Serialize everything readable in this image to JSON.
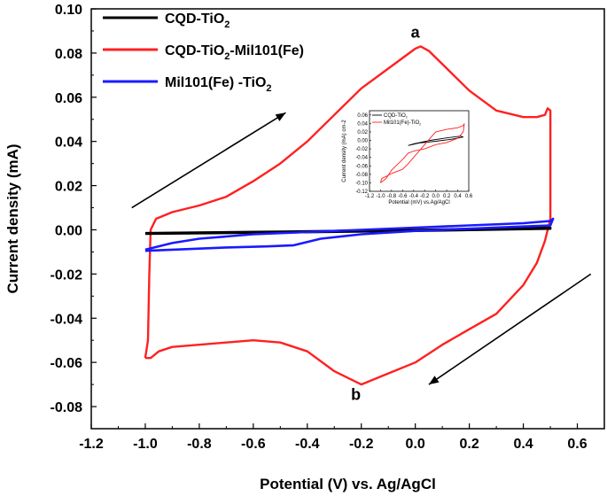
{
  "chart_data": {
    "type": "line",
    "title": "",
    "xlabel": "Potential (V) vs. Ag/AgCl",
    "ylabel": "Current density (mA)",
    "xlim": [
      -1.2,
      0.7
    ],
    "ylim": [
      -0.09,
      0.1
    ],
    "x_ticks": [
      "-1.2",
      "-1.0",
      "-0.8",
      "-0.6",
      "-0.4",
      "-0.2",
      "0.0",
      "0.2",
      "0.4",
      "0.6"
    ],
    "y_ticks": [
      "0.10",
      "0.08",
      "0.06",
      "0.04",
      "0.02",
      "0.00",
      "-0.02",
      "-0.04",
      "-0.06",
      "-0.08"
    ],
    "series": [
      {
        "name": "CQD-TiO2",
        "legend_main": "CQD-TiO",
        "legend_sub": "2",
        "legend_tail": "",
        "color": "#000000",
        "points": [
          [
            -1.0,
            -0.0015
          ],
          [
            -0.5,
            -0.0008
          ],
          [
            0.0,
            0.0
          ],
          [
            0.5,
            0.001
          ],
          [
            0.5,
            0.0005
          ],
          [
            0.0,
            -0.0005
          ],
          [
            -0.5,
            -0.0012
          ],
          [
            -1.0,
            -0.0018
          ]
        ]
      },
      {
        "name": "CQD-TiO2-Mil101(Fe)",
        "legend_main": "CQD-TiO",
        "legend_sub": "2",
        "legend_tail": "-Mil101(Fe)",
        "color": "#ff2020",
        "points": [
          [
            -1.0,
            -0.058
          ],
          [
            -0.99,
            -0.05
          ],
          [
            -0.985,
            -0.02
          ],
          [
            -0.98,
            0.0
          ],
          [
            -0.96,
            0.005
          ],
          [
            -0.9,
            0.008
          ],
          [
            -0.8,
            0.011
          ],
          [
            -0.7,
            0.015
          ],
          [
            -0.6,
            0.022
          ],
          [
            -0.5,
            0.03
          ],
          [
            -0.4,
            0.04
          ],
          [
            -0.3,
            0.052
          ],
          [
            -0.2,
            0.064
          ],
          [
            -0.1,
            0.073
          ],
          [
            0.0,
            0.082
          ],
          [
            0.02,
            0.083
          ],
          [
            0.05,
            0.081
          ],
          [
            0.1,
            0.075
          ],
          [
            0.2,
            0.063
          ],
          [
            0.3,
            0.054
          ],
          [
            0.4,
            0.051
          ],
          [
            0.45,
            0.051
          ],
          [
            0.48,
            0.052
          ],
          [
            0.49,
            0.055
          ],
          [
            0.5,
            0.054
          ],
          [
            0.5,
            0.005
          ],
          [
            0.48,
            -0.005
          ],
          [
            0.45,
            -0.015
          ],
          [
            0.4,
            -0.025
          ],
          [
            0.3,
            -0.038
          ],
          [
            0.2,
            -0.045
          ],
          [
            0.1,
            -0.052
          ],
          [
            0.0,
            -0.06
          ],
          [
            -0.1,
            -0.065
          ],
          [
            -0.2,
            -0.07
          ],
          [
            -0.3,
            -0.064
          ],
          [
            -0.4,
            -0.055
          ],
          [
            -0.5,
            -0.051
          ],
          [
            -0.6,
            -0.05
          ],
          [
            -0.7,
            -0.051
          ],
          [
            -0.8,
            -0.052
          ],
          [
            -0.9,
            -0.053
          ],
          [
            -0.95,
            -0.055
          ],
          [
            -0.98,
            -0.058
          ],
          [
            -1.0,
            -0.058
          ]
        ]
      },
      {
        "name": "Mil101(Fe) -TiO2",
        "legend_main": "Mil101(Fe) -TiO",
        "legend_sub": "2",
        "legend_tail": "",
        "color": "#1a1aff",
        "points": [
          [
            -1.0,
            -0.009
          ],
          [
            -0.9,
            -0.006
          ],
          [
            -0.8,
            -0.004
          ],
          [
            -0.7,
            -0.003
          ],
          [
            -0.6,
            -0.002
          ],
          [
            -0.5,
            -0.0015
          ],
          [
            -0.4,
            -0.001
          ],
          [
            -0.2,
            0.0
          ],
          [
            0.0,
            0.001
          ],
          [
            0.2,
            0.002
          ],
          [
            0.4,
            0.003
          ],
          [
            0.5,
            0.004
          ],
          [
            0.51,
            0.005
          ],
          [
            0.5,
            0.002
          ],
          [
            0.4,
            0.0015
          ],
          [
            0.2,
            0.0005
          ],
          [
            0.0,
            -0.0005
          ],
          [
            -0.2,
            -0.002
          ],
          [
            -0.35,
            -0.004
          ],
          [
            -0.45,
            -0.007
          ],
          [
            -0.55,
            -0.0075
          ],
          [
            -0.7,
            -0.008
          ],
          [
            -0.8,
            -0.0085
          ],
          [
            -0.9,
            -0.009
          ],
          [
            -1.0,
            -0.0095
          ]
        ]
      }
    ],
    "annotations": [
      {
        "text": "a",
        "x": 0.0,
        "y": 0.087
      },
      {
        "text": "b",
        "x": -0.22,
        "y": -0.077
      }
    ],
    "arrows": [
      {
        "from": [
          -1.05,
          0.01
        ],
        "to": [
          -0.48,
          0.053
        ]
      },
      {
        "from": [
          0.65,
          -0.02
        ],
        "to": [
          0.05,
          -0.07
        ]
      }
    ],
    "inset": {
      "xlabel": "Potential (mV) vs.Ag/AgCl",
      "ylabel": "Current density (mA) cm-2",
      "xlim": [
        -1.2,
        0.6
      ],
      "ylim": [
        -0.12,
        0.07
      ],
      "x_ticks": [
        "-1.2",
        "-1.0",
        "-0.8",
        "-0.6",
        "-0.4",
        "-0.2",
        "0.0",
        "0.2",
        "0.4",
        "0.6"
      ],
      "y_ticks": [
        "0.06",
        "0.04",
        "0.02",
        "0.00",
        "-0.02",
        "-0.04",
        "-0.06",
        "-0.08",
        "-0.10",
        "-0.12"
      ],
      "series": [
        {
          "name": "CQD-TiO2",
          "legend_main": "CQD-TiO",
          "legend_sub": "2",
          "color": "#000000",
          "points": [
            [
              -0.5,
              -0.012
            ],
            [
              -0.3,
              -0.006
            ],
            [
              0.0,
              -0.002
            ],
            [
              0.3,
              0.003
            ],
            [
              0.5,
              0.008
            ],
            [
              0.45,
              0.01
            ],
            [
              0.2,
              0.006
            ],
            [
              -0.1,
              0.0
            ],
            [
              -0.4,
              -0.008
            ],
            [
              -0.5,
              -0.012
            ]
          ]
        },
        {
          "name": "Mil101(Fe)-TiO2",
          "legend_main": "Mil101(Fe)-TiO",
          "legend_sub": "2",
          "color": "#ff2020",
          "points": [
            [
              -1.0,
              -0.1
            ],
            [
              -0.98,
              -0.09
            ],
            [
              -0.9,
              -0.085
            ],
            [
              -0.8,
              -0.078
            ],
            [
              -0.6,
              -0.068
            ],
            [
              -0.5,
              -0.055
            ],
            [
              -0.4,
              -0.04
            ],
            [
              -0.3,
              -0.025
            ],
            [
              -0.2,
              -0.01
            ],
            [
              -0.1,
              0.005
            ],
            [
              0.0,
              0.02
            ],
            [
              0.2,
              0.026
            ],
            [
              0.4,
              0.03
            ],
            [
              0.5,
              0.035
            ],
            [
              0.52,
              0.04
            ],
            [
              0.5,
              0.02
            ],
            [
              0.4,
              0.005
            ],
            [
              0.2,
              -0.005
            ],
            [
              0.0,
              -0.01
            ],
            [
              -0.2,
              -0.02
            ],
            [
              -0.4,
              -0.025
            ],
            [
              -0.5,
              -0.03
            ],
            [
              -0.6,
              -0.045
            ],
            [
              -0.8,
              -0.07
            ],
            [
              -0.9,
              -0.09
            ],
            [
              -1.0,
              -0.1
            ]
          ]
        }
      ]
    }
  }
}
